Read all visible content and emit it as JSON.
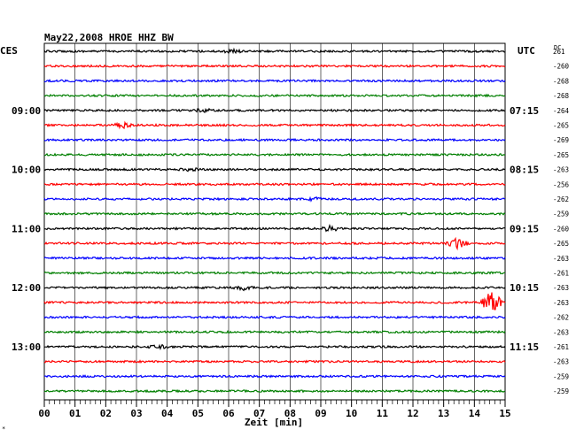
{
  "header": {
    "title": "May22,2008   HROE HHZ BW",
    "left_zone": "CES",
    "right_zone": "UTC",
    "dc_label": "DC"
  },
  "colors": {
    "background": "#ffffff",
    "grid": "#000000",
    "trace_cycle": [
      "#000000",
      "#ff0000",
      "#0000ff",
      "#007f00"
    ]
  },
  "chart_data": {
    "type": "line",
    "title": "May22,2008   HROE HHZ BW",
    "xlabel": "Zeit [min]",
    "ylabel": "",
    "x_ticks": [
      "00",
      "01",
      "02",
      "03",
      "04",
      "05",
      "06",
      "07",
      "08",
      "09",
      "10",
      "11",
      "12",
      "13",
      "14",
      "15"
    ],
    "xlim": [
      0,
      15
    ],
    "grid": true,
    "rows": 24,
    "left_time_labels": [
      {
        "row": 4,
        "label": "09:00"
      },
      {
        "row": 8,
        "label": "10:00"
      },
      {
        "row": 12,
        "label": "11:00"
      },
      {
        "row": 16,
        "label": "12:00"
      },
      {
        "row": 20,
        "label": "13:00"
      }
    ],
    "right_time_labels": [
      {
        "row": 4,
        "label": "07:15"
      },
      {
        "row": 8,
        "label": "08:15"
      },
      {
        "row": 12,
        "label": "09:15"
      },
      {
        "row": 16,
        "label": "10:15"
      },
      {
        "row": 20,
        "label": "11:15"
      }
    ],
    "dc_offsets": [
      "261",
      "-260",
      "-268",
      "-268",
      "-264",
      "-265",
      "-269",
      "-265",
      "-263",
      "-256",
      "-262",
      "-259",
      "-260",
      "-265",
      "-263",
      "-261",
      "-263",
      "-263",
      "-262",
      "-263",
      "-261",
      "-263",
      "-259",
      "-259"
    ],
    "events": [
      {
        "row": 0,
        "minute": 6.1,
        "amplitude": 2
      },
      {
        "row": 4,
        "minute": 5.2,
        "amplitude": 2
      },
      {
        "row": 5,
        "minute": 2.55,
        "amplitude": 3
      },
      {
        "row": 8,
        "minute": 4.7,
        "amplitude": 2
      },
      {
        "row": 10,
        "minute": 8.8,
        "amplitude": 1.5
      },
      {
        "row": 12,
        "minute": 9.3,
        "amplitude": 3
      },
      {
        "row": 13,
        "minute": 13.45,
        "amplitude": 6
      },
      {
        "row": 16,
        "minute": 6.5,
        "amplitude": 2.5
      },
      {
        "row": 17,
        "minute": 14.55,
        "amplitude": 14
      },
      {
        "row": 20,
        "minute": 3.7,
        "amplitude": 2
      }
    ]
  },
  "footer": {
    "corner_mark": "*"
  }
}
